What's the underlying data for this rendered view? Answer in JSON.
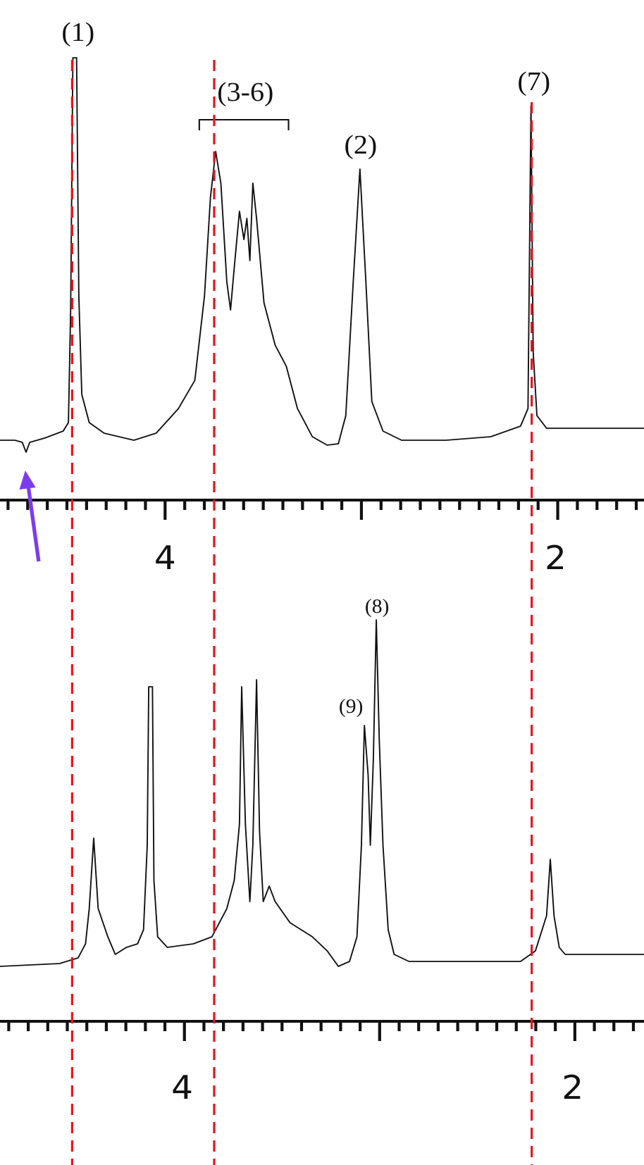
{
  "top_spectrum": {
    "peak_labels": [
      "(1)",
      "(3-6)",
      "(2)",
      "(7)"
    ],
    "axis_labels": [
      "4",
      "2"
    ]
  },
  "bottom_spectrum": {
    "peak_labels": [
      "(8)",
      "(9)"
    ],
    "axis_labels": [
      "4",
      "2"
    ]
  }
}
